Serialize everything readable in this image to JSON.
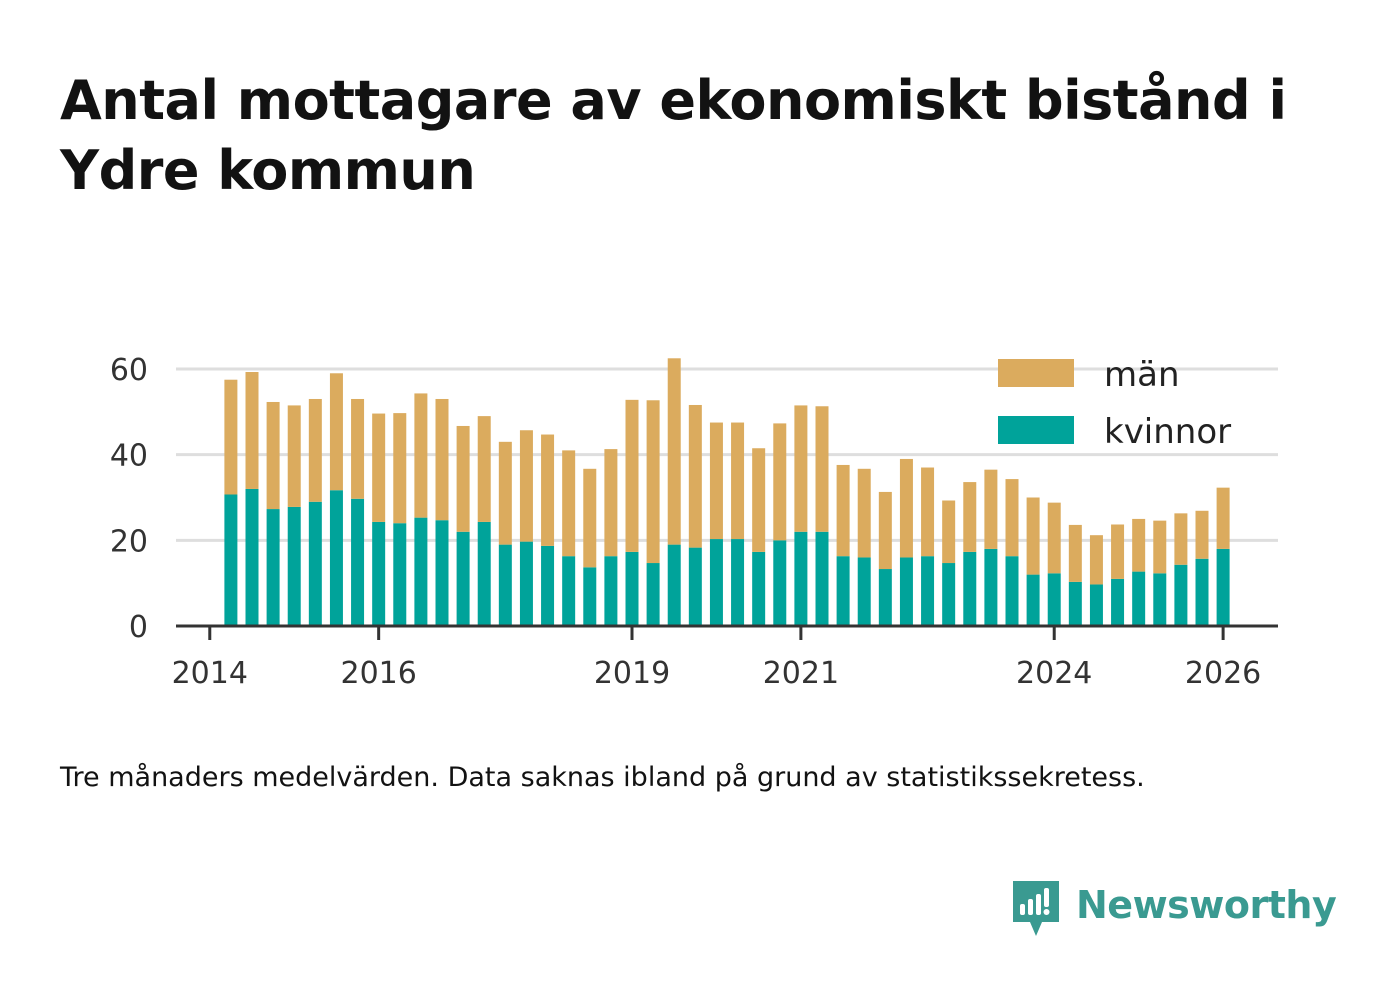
{
  "title": "Antal mottagare av ekonomiskt bistånd i Ydre kommun",
  "note": "Tre månaders medelvärden. Data saknas ibland på grund av statistikssekretess.",
  "brand": {
    "name": "Newsworthy",
    "icon": "newsworthy-logo-icon",
    "color": "#3a9a91"
  },
  "chart_data": {
    "type": "bar",
    "stacked": true,
    "title": "Antal mottagare av ekonomiskt bistånd i Ydre kommun",
    "xlabel": "",
    "ylabel": "",
    "ylim": [
      0,
      65
    ],
    "yticks": [
      0,
      20,
      40,
      60
    ],
    "xlim": [
      2013.6,
      2026.65
    ],
    "xticks": [
      2014,
      2016,
      2019,
      2021,
      2024,
      2026
    ],
    "grid": true,
    "legend_position": "top-right",
    "x": [
      2014.25,
      2014.5,
      2014.75,
      2015.0,
      2015.25,
      2015.5,
      2015.75,
      2016.0,
      2016.25,
      2016.5,
      2016.75,
      2017.0,
      2017.25,
      2017.5,
      2017.75,
      2018.0,
      2018.25,
      2018.5,
      2018.75,
      2019.0,
      2019.25,
      2019.5,
      2019.75,
      2020.0,
      2020.25,
      2020.5,
      2020.75,
      2021.0,
      2021.25,
      2021.5,
      2021.75,
      2022.0,
      2022.25,
      2022.5,
      2022.75,
      2023.0,
      2023.25,
      2023.5,
      2023.75,
      2024.0,
      2024.25,
      2024.5,
      2024.75,
      2025.0,
      2025.25,
      2025.5,
      2025.75,
      2026.0
    ],
    "series": [
      {
        "name": "kvinnor",
        "color": "#00a39a",
        "values": [
          30.7,
          32.0,
          27.3,
          27.8,
          29.0,
          31.7,
          29.7,
          24.3,
          24.0,
          25.3,
          24.7,
          22.0,
          24.3,
          19.0,
          19.7,
          18.7,
          16.3,
          13.7,
          16.3,
          17.3,
          14.7,
          19.0,
          18.3,
          20.3,
          20.3,
          17.3,
          20.0,
          22.0,
          22.0,
          16.3,
          16.0,
          13.3,
          16.0,
          16.3,
          14.7,
          17.3,
          18.0,
          16.3,
          12.0,
          12.3,
          10.3,
          9.7,
          11.0,
          12.7,
          12.3,
          14.3,
          15.7,
          18.0
        ]
      },
      {
        "name": "män",
        "color": "#dbab5e",
        "values": [
          26.8,
          27.3,
          25.0,
          23.7,
          24.0,
          27.3,
          23.3,
          25.3,
          25.7,
          29.0,
          28.3,
          24.7,
          24.7,
          24.0,
          26.0,
          26.0,
          24.7,
          23.0,
          25.0,
          35.5,
          38.0,
          43.5,
          33.3,
          27.2,
          27.2,
          24.2,
          27.3,
          29.5,
          29.3,
          21.3,
          20.7,
          18.0,
          23.0,
          20.7,
          14.6,
          16.3,
          18.5,
          18.0,
          18.0,
          16.5,
          13.3,
          11.5,
          12.7,
          12.3,
          12.3,
          12.0,
          11.2,
          14.3
        ]
      }
    ],
    "legend": [
      "män",
      "kvinnor"
    ]
  }
}
